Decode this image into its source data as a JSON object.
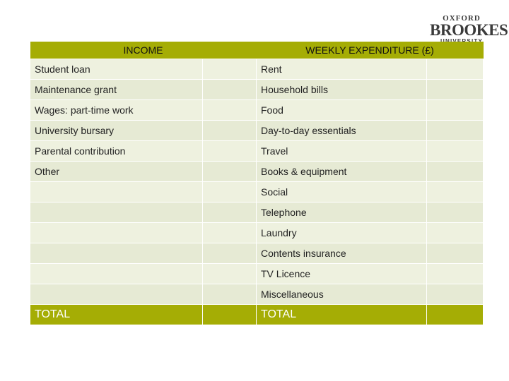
{
  "logo": {
    "line1": "OXFORD",
    "line2": "BROOKES",
    "line3": "UNIVERSITY"
  },
  "headers": {
    "income": "INCOME",
    "expenditure": "WEEKLY EXPENDITURE (£)"
  },
  "rows": [
    {
      "income": "Student loan",
      "expenditure": "Rent"
    },
    {
      "income": "Maintenance grant",
      "expenditure": "Household bills"
    },
    {
      "income": "Wages: part-time work",
      "expenditure": "Food"
    },
    {
      "income": "University bursary",
      "expenditure": "Day-to-day essentials"
    },
    {
      "income": "Parental contribution",
      "expenditure": "Travel"
    },
    {
      "income": "Other",
      "expenditure": "Books & equipment"
    },
    {
      "income": "",
      "expenditure": "Social"
    },
    {
      "income": "",
      "expenditure": "Telephone"
    },
    {
      "income": "",
      "expenditure": "Laundry"
    },
    {
      "income": "",
      "expenditure": "Contents insurance"
    },
    {
      "income": "",
      "expenditure": "TV Licence"
    },
    {
      "income": "",
      "expenditure": "Miscellaneous"
    }
  ],
  "totals": {
    "income": "TOTAL",
    "expenditure": "TOTAL"
  },
  "colors": {
    "header": "#a5ad05",
    "row": "#eef1df"
  }
}
